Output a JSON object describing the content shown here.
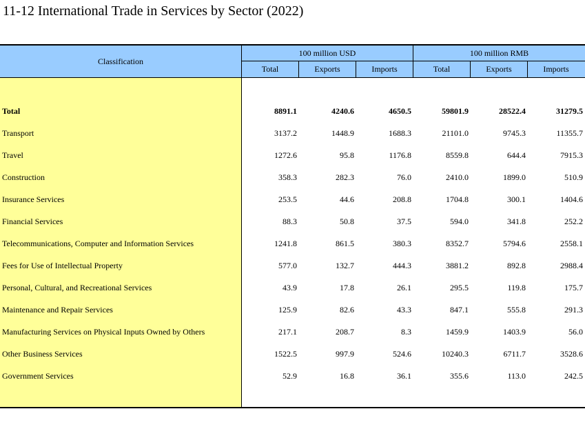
{
  "title": "11-12  International Trade in Services by Sector (2022)",
  "header": {
    "classification": "Classification",
    "groups": [
      "100 million USD",
      "100 million RMB"
    ],
    "subs": [
      "Total",
      "Exports",
      "Imports",
      "Total",
      "Exports",
      "Imports"
    ]
  },
  "rows": [
    {
      "label": "Total",
      "values": [
        "8891.1",
        "4240.6",
        "4650.5",
        "59801.9",
        "28522.4",
        "31279.5"
      ]
    },
    {
      "label": "Transport",
      "values": [
        "3137.2",
        "1448.9",
        "1688.3",
        "21101.0",
        "9745.3",
        "11355.7"
      ]
    },
    {
      "label": "Travel",
      "values": [
        "1272.6",
        "95.8",
        "1176.8",
        "8559.8",
        "644.4",
        "7915.3"
      ]
    },
    {
      "label": "Construction",
      "values": [
        "358.3",
        "282.3",
        "76.0",
        "2410.0",
        "1899.0",
        "510.9"
      ]
    },
    {
      "label": "Insurance Services",
      "values": [
        "253.5",
        "44.6",
        "208.8",
        "1704.8",
        "300.1",
        "1404.6"
      ]
    },
    {
      "label": "Financial Services",
      "values": [
        "88.3",
        "50.8",
        "37.5",
        "594.0",
        "341.8",
        "252.2"
      ]
    },
    {
      "label": "Telecommunications, Computer and Information Services",
      "values": [
        "1241.8",
        "861.5",
        "380.3",
        "8352.7",
        "5794.6",
        "2558.1"
      ]
    },
    {
      "label": "Fees for Use of Intellectual Property",
      "values": [
        "577.0",
        "132.7",
        "444.3",
        "3881.2",
        "892.8",
        "2988.4"
      ]
    },
    {
      "label": "Personal, Cultural, and Recreational Services",
      "values": [
        "43.9",
        "17.8",
        "26.1",
        "295.5",
        "119.8",
        "175.7"
      ]
    },
    {
      "label": "Maintenance and Repair Services",
      "values": [
        "125.9",
        "82.6",
        "43.3",
        "847.1",
        "555.8",
        "291.3"
      ]
    },
    {
      "label": "Manufacturing Services on Physical Inputs Owned by Others",
      "values": [
        "217.1",
        "208.7",
        "8.3",
        "1459.9",
        "1403.9",
        "56.0"
      ]
    },
    {
      "label": "Other Business Services",
      "values": [
        "1522.5",
        "997.9",
        "524.6",
        "10240.3",
        "6711.7",
        "3528.6"
      ]
    },
    {
      "label": "Government Services",
      "values": [
        "52.9",
        "16.8",
        "36.1",
        "355.6",
        "113.0",
        "242.5"
      ]
    }
  ]
}
